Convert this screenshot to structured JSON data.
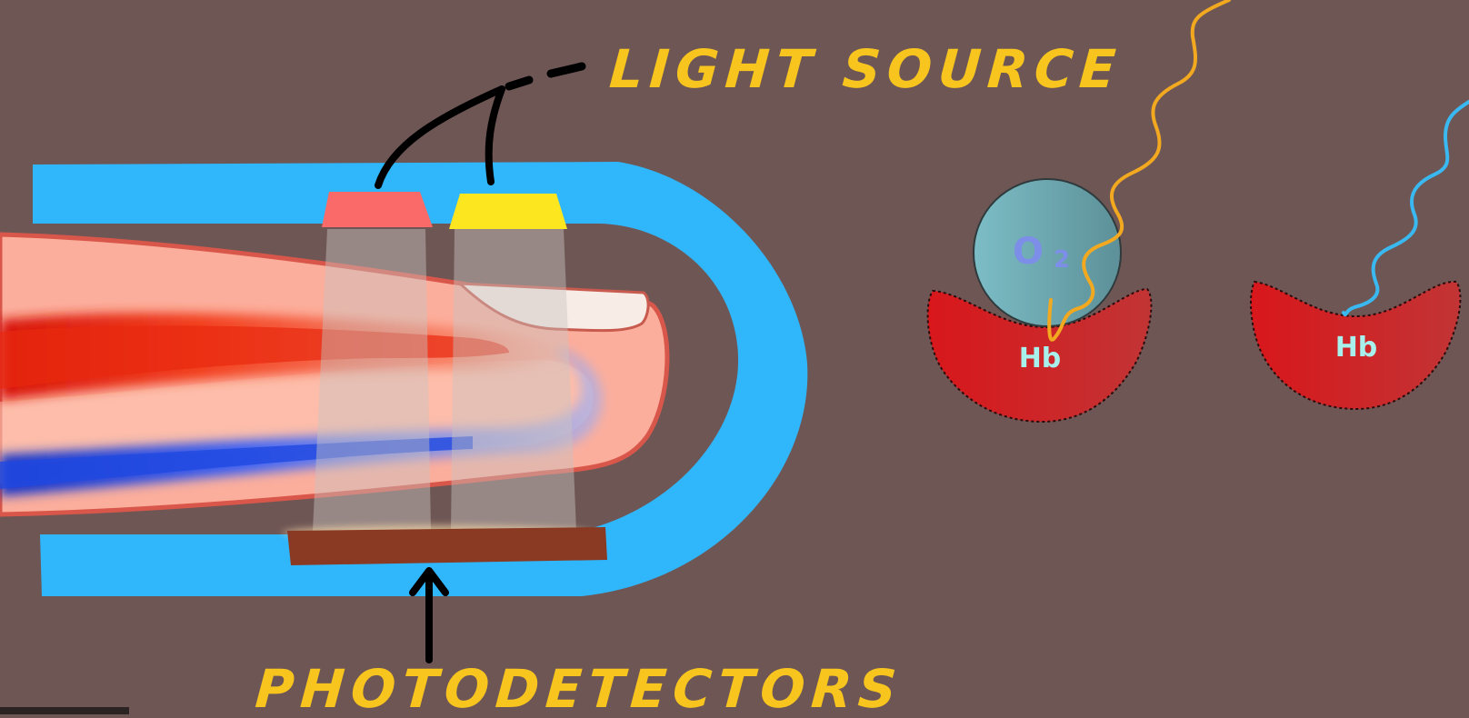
{
  "labels": {
    "light_source": "LIGHT SOURCE",
    "photodetectors": "PHOTODETECTORS"
  },
  "molecules": {
    "oxygenated": {
      "hb_label": "Hb",
      "o2_label": "O",
      "o2_subscript": "2"
    },
    "deoxygenated": {
      "hb_label": "Hb"
    }
  },
  "colors": {
    "background": "#6e5655",
    "clip": "#30b6fb",
    "finger": "#fcae9c",
    "artery": "#f2401f",
    "vein": "#3e62f3",
    "red_led": "#fa6a68",
    "yellow_led": "#fbe61f",
    "detector": "#8a3a22",
    "label": "#f7c51e",
    "hemoglobin": "#d21e22",
    "oxygen": "#6fa6ad",
    "light_wave_orange": "#f2a920",
    "light_wave_blue": "#3ab8f0"
  },
  "icons": {
    "led_red": "red-led-icon",
    "led_yellow": "yellow-led-icon",
    "arrow": "arrow-up-icon"
  }
}
